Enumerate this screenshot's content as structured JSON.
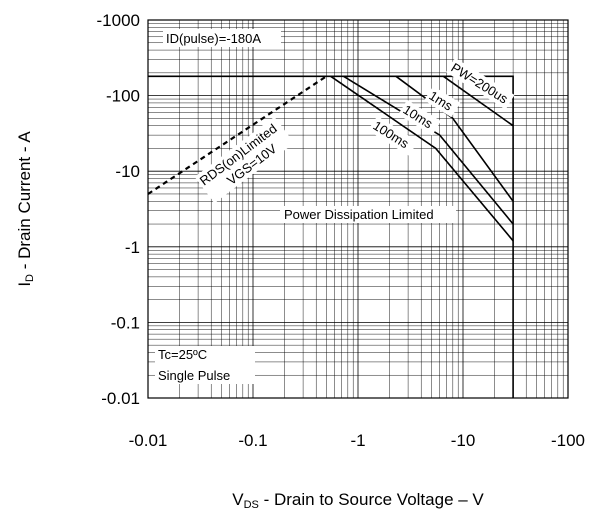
{
  "chart_data": {
    "type": "line",
    "xlabel_main": "V",
    "xlabel_sub": "DS",
    "xlabel_rest": " - Drain to Source Voltage – V",
    "ylabel_main": "I",
    "ylabel_sub": "D",
    "ylabel_rest": " - Drain Current - A",
    "xscale": "log",
    "yscale": "log",
    "xlim": [
      0.01,
      100
    ],
    "ylim": [
      0.01,
      1000
    ],
    "x_tick_labels": [
      "-0.01",
      "-0.1",
      "-1",
      "-10",
      "-100"
    ],
    "y_tick_labels": [
      "-0.01",
      "-0.1",
      "-1",
      "-10",
      "-100",
      "-1000"
    ],
    "grid": true,
    "annotations": {
      "id_pulse": "ID(pulse)=-180A",
      "pw": "PW=200us",
      "ms1": "1ms",
      "ms10": "10ms",
      "ms100": "100ms",
      "rds_line1": "RDS(on)Limited",
      "rds_line2": "VGS=10V",
      "power_limited": "Power Dissipation Limited",
      "tc": "Tc=25ºC",
      "single_pulse": "Single Pulse"
    },
    "series": [
      {
        "style": "dashed",
        "x": [
          0.01,
          0.5
        ],
        "y": [
          5,
          180
        ]
      },
      {
        "style": "solid",
        "x": [
          0.01,
          30,
          30
        ],
        "y": [
          180,
          180,
          0.01
        ]
      },
      {
        "style": "solid",
        "x": [
          6.5,
          30
        ],
        "y": [
          180,
          40
        ]
      },
      {
        "style": "solid",
        "x": [
          2.3,
          8,
          30
        ],
        "y": [
          180,
          50,
          4
        ]
      },
      {
        "style": "solid",
        "x": [
          0.73,
          6,
          30
        ],
        "y": [
          180,
          30,
          2
        ]
      },
      {
        "style": "solid",
        "x": [
          0.55,
          5.5,
          30
        ],
        "y": [
          180,
          20,
          1.2
        ]
      }
    ]
  }
}
